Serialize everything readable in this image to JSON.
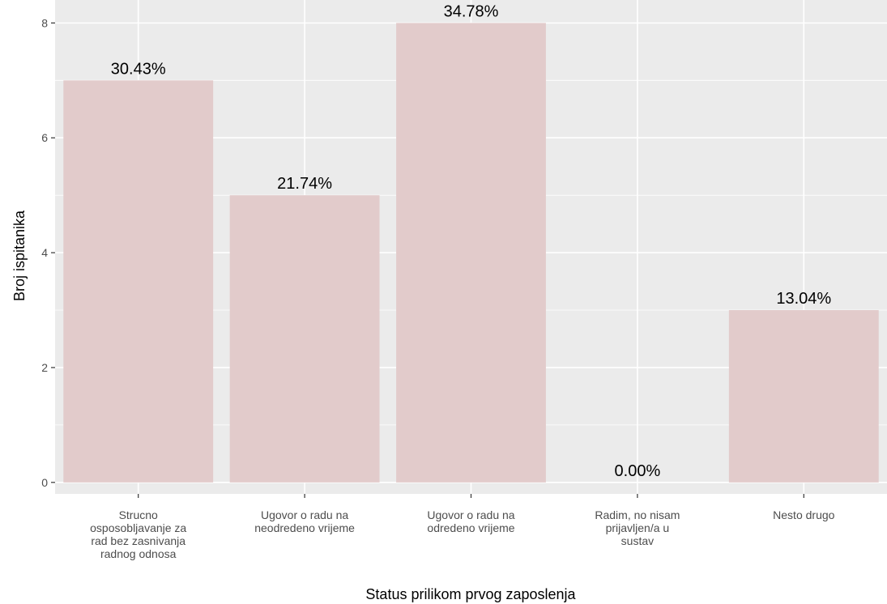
{
  "chart_data": {
    "type": "bar",
    "title": "",
    "xlabel": "Status prilikom prvog zaposlenja",
    "ylabel": "Broj ispitanika",
    "categories": [
      [
        "Strucno",
        "osposobljavanje za",
        "rad bez zasnivanja",
        "radnog odnosa"
      ],
      [
        "Ugovor o radu na",
        "neodredeno vrijeme"
      ],
      [
        "Ugovor o radu na",
        "odredeno vrijeme"
      ],
      [
        "Radim, no nisam",
        "prijavljen/a u",
        "sustav"
      ],
      [
        "Nesto drugo"
      ]
    ],
    "values": [
      7,
      5,
      8,
      0,
      3
    ],
    "data_labels": [
      "30.43%",
      "21.74%",
      "34.78%",
      "0.00%",
      "13.04%"
    ],
    "ylim": [
      -0.2,
      8.4
    ],
    "yticks": [
      0,
      2,
      4,
      6,
      8
    ],
    "grid": true,
    "colors": {
      "bar": "#e2cbcb",
      "panel": "#ebebeb",
      "grid_major": "#ffffff",
      "tick": "#333333"
    }
  }
}
